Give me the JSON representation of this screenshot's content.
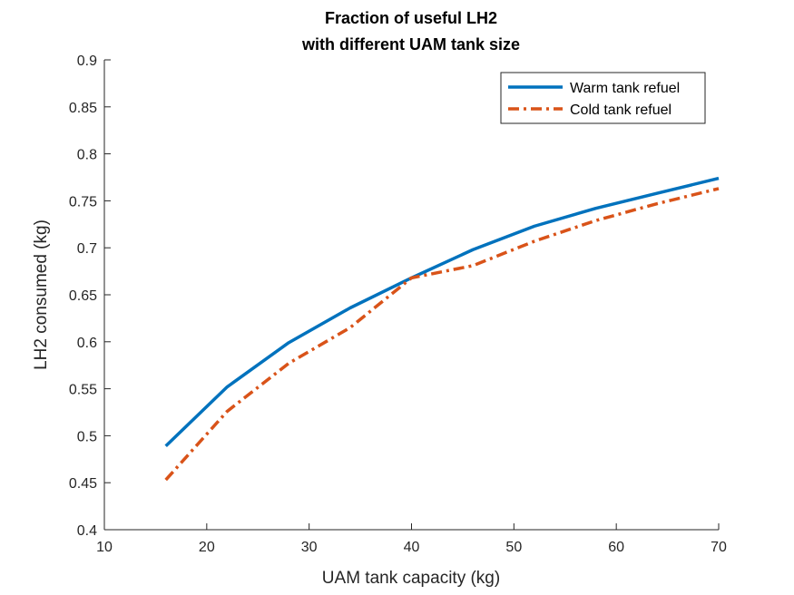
{
  "chart_data": {
    "type": "line",
    "title": [
      "Fraction of useful LH2",
      "with different UAM tank size"
    ],
    "xlabel": "UAM tank capacity (kg)",
    "ylabel": "LH2 consumed (kg)",
    "xlim": [
      10,
      70
    ],
    "ylim": [
      0.4,
      0.9
    ],
    "xticks": [
      10,
      20,
      30,
      40,
      50,
      60,
      70
    ],
    "yticks": [
      0.4,
      0.45,
      0.5,
      0.55,
      0.6,
      0.65,
      0.7,
      0.75,
      0.8,
      0.85,
      0.9
    ],
    "xtick_labels": [
      "10",
      "20",
      "30",
      "40",
      "50",
      "60",
      "70"
    ],
    "ytick_labels": [
      "0.4",
      "0.45",
      "0.5",
      "0.55",
      "0.6",
      "0.65",
      "0.7",
      "0.75",
      "0.8",
      "0.85",
      "0.9"
    ],
    "legend_position": "top-right",
    "grid": false,
    "series": [
      {
        "name": "Warm tank refuel",
        "color": "#0072BD",
        "style": "solid",
        "x": [
          16,
          22,
          28,
          34,
          40,
          46,
          52,
          58,
          64,
          70
        ],
        "y": [
          0.489,
          0.552,
          0.599,
          0.636,
          0.668,
          0.698,
          0.723,
          0.742,
          0.758,
          0.774
        ]
      },
      {
        "name": "Cold tank refuel",
        "color": "#D95319",
        "style": "dashdot",
        "x": [
          16,
          22,
          28,
          34,
          40,
          46,
          52,
          58,
          64,
          70
        ],
        "y": [
          0.453,
          0.526,
          0.577,
          0.615,
          0.668,
          0.681,
          0.707,
          0.729,
          0.747,
          0.763
        ]
      }
    ]
  }
}
